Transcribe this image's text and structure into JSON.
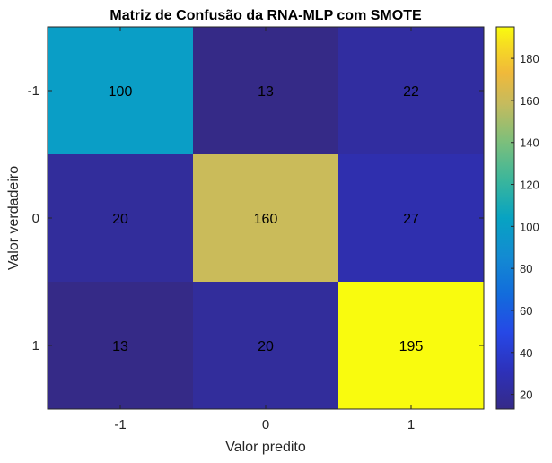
{
  "chart_data": {
    "type": "heatmap",
    "title": "Matriz de Confusão da RNA-MLP com SMOTE",
    "xlabel": "Valor predito",
    "ylabel": "Valor verdadeiro",
    "x_categories": [
      "-1",
      "0",
      "1"
    ],
    "y_categories": [
      "-1",
      "0",
      "1"
    ],
    "values": [
      [
        100,
        13,
        22
      ],
      [
        20,
        160,
        27
      ],
      [
        13,
        20,
        195
      ]
    ],
    "colormap": "parula",
    "colorbar": {
      "range": [
        13,
        195
      ],
      "ticks": [
        20,
        40,
        60,
        80,
        100,
        120,
        140,
        160,
        180
      ]
    }
  }
}
